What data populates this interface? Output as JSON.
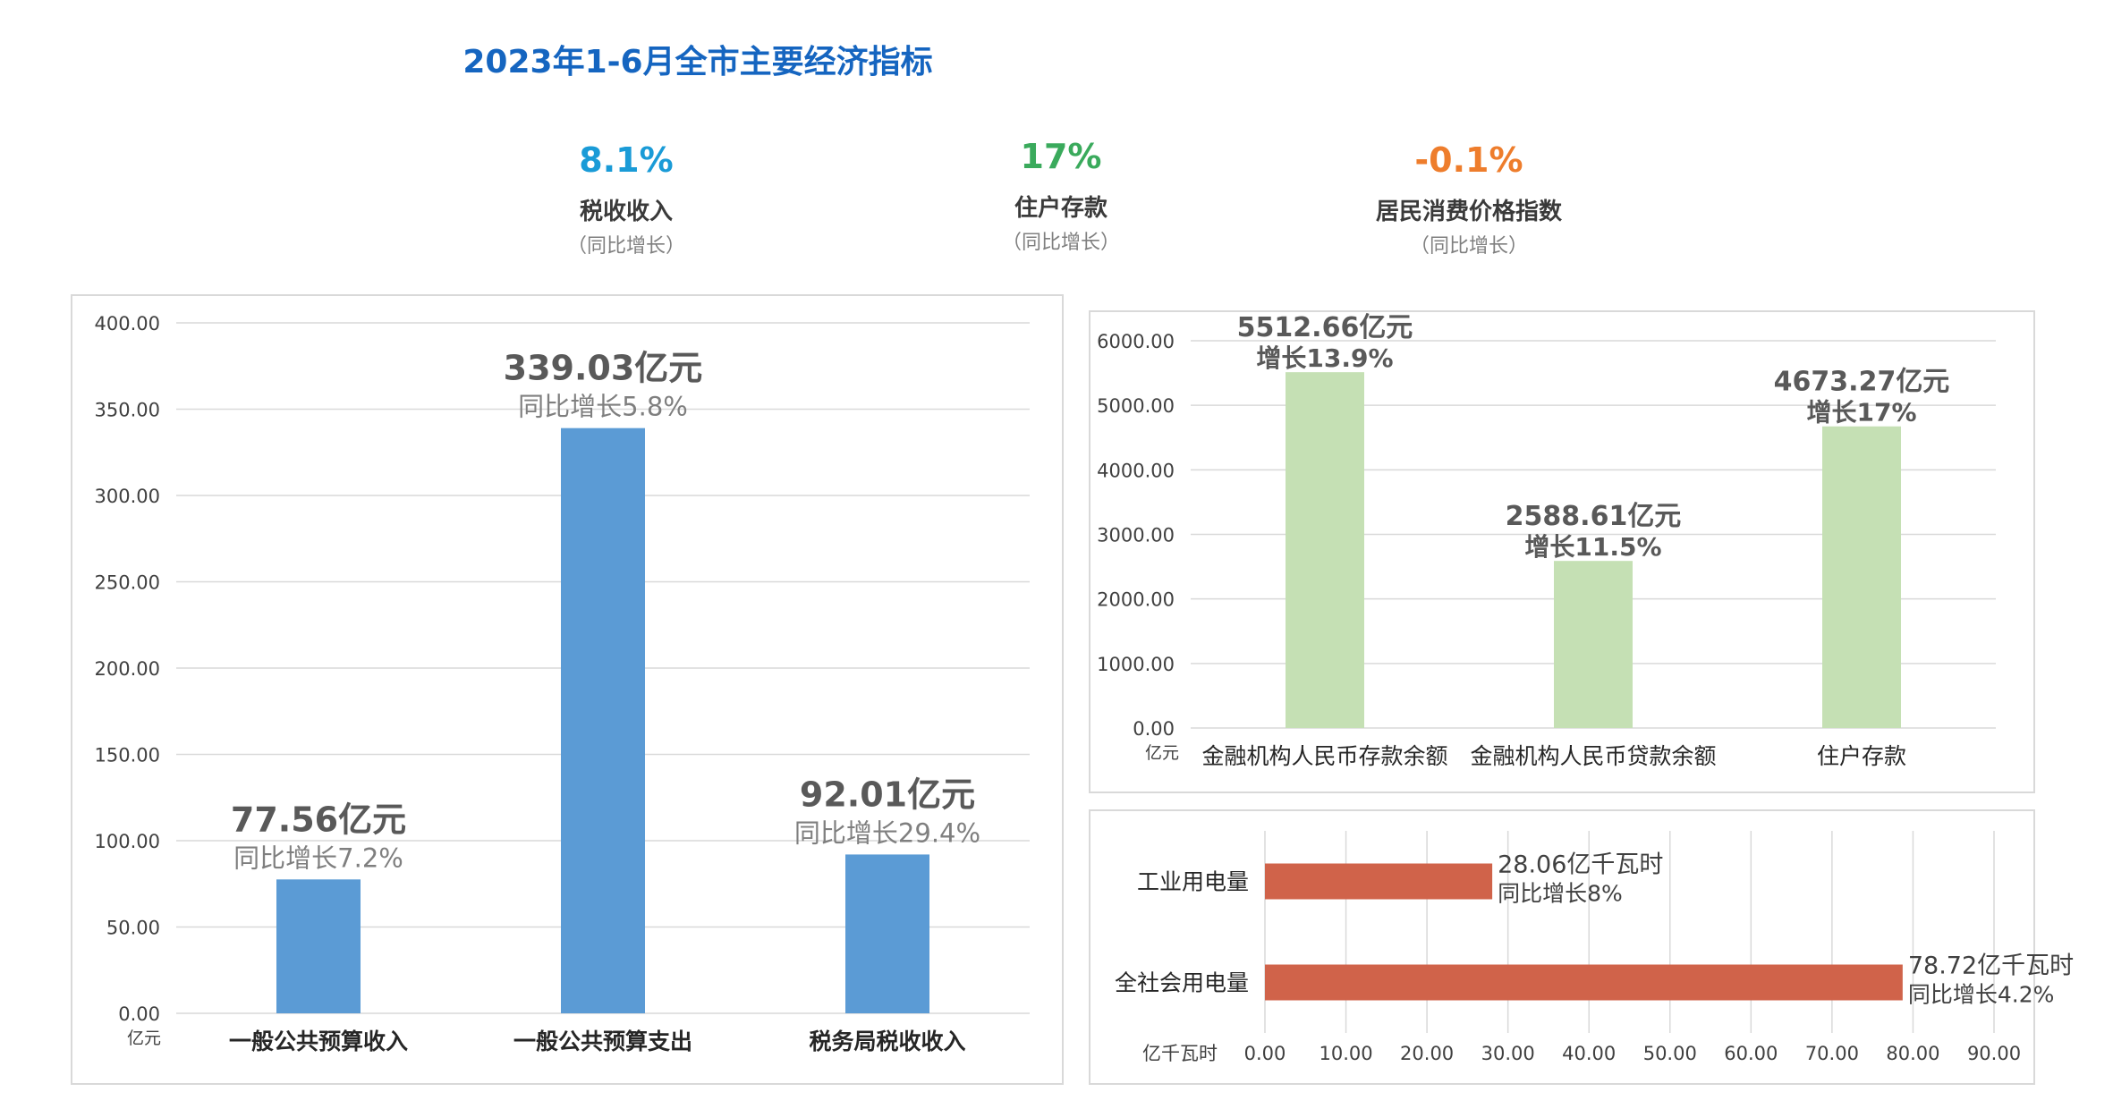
{
  "title": "2023年1-6月全市主要经济指标",
  "kpis": [
    {
      "value": "8.1%",
      "label": "税收收入",
      "sub": "（同比增长）",
      "color": "#1a9bd7"
    },
    {
      "value": "17%",
      "label": "住户存款",
      "sub": "（同比增长）",
      "color": "#3aaa5c"
    },
    {
      "value": "-0.1%",
      "label": "居民消费价格指数",
      "sub": "（同比增长）",
      "color": "#ee7d2c"
    }
  ],
  "chart_data": [
    {
      "type": "bar",
      "unit": "亿元",
      "categories": [
        "一般公共预算收入",
        "一般公共预算支出",
        "税务局税收收入"
      ],
      "values": [
        77.56,
        339.03,
        92.01
      ],
      "labels": [
        "77.56亿元",
        "339.03亿元",
        "92.01亿元"
      ],
      "sublabels": [
        "同比增长7.2%",
        "同比增长5.8%",
        "同比增长29.4%"
      ],
      "ylim": [
        0,
        400
      ],
      "yticks": [
        "0.00",
        "50.00",
        "100.00",
        "150.00",
        "200.00",
        "250.00",
        "300.00",
        "350.00",
        "400.00"
      ],
      "color": "#5b9bd5",
      "grid": true
    },
    {
      "type": "bar",
      "unit": "亿元",
      "categories": [
        "金融机构人民币存款余额",
        "金融机构人民币贷款余额",
        "住户存款"
      ],
      "values": [
        5512.66,
        2588.61,
        4673.27
      ],
      "labels": [
        "5512.66亿元",
        "2588.61亿元",
        "4673.27亿元"
      ],
      "sublabels": [
        "增长13.9%",
        "增长11.5%",
        "增长17%"
      ],
      "ylim": [
        0,
        6000
      ],
      "yticks": [
        "0.00",
        "1000.00",
        "2000.00",
        "3000.00",
        "4000.00",
        "5000.00",
        "6000.00"
      ],
      "color": "#c5e0b4",
      "grid": true
    },
    {
      "type": "bar",
      "orientation": "horizontal",
      "unit": "亿千瓦时",
      "categories": [
        "工业用电量",
        "全社会用电量"
      ],
      "values": [
        28.06,
        78.72
      ],
      "labels": [
        "28.06亿千瓦时",
        "78.72亿千瓦时"
      ],
      "sublabels": [
        "同比增长8%",
        "同比增长4.2%"
      ],
      "xlim": [
        0,
        90
      ],
      "xticks": [
        "0.00",
        "10.00",
        "20.00",
        "30.00",
        "40.00",
        "50.00",
        "60.00",
        "70.00",
        "80.00",
        "90.00"
      ],
      "color": "#d0634a",
      "grid": true
    }
  ]
}
